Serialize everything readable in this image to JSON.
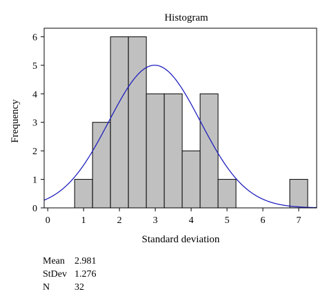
{
  "chart_data": {
    "type": "bar",
    "title": "Histogram",
    "xlabel": "Standard deviation",
    "ylabel": "Frequency",
    "xlim": [
      -0.1,
      7.5
    ],
    "ylim": [
      0,
      6.3
    ],
    "xticks": [
      0,
      1,
      2,
      3,
      4,
      5,
      6,
      7
    ],
    "yticks": [
      0,
      1,
      2,
      3,
      4,
      5,
      6
    ],
    "bin_width": 0.5,
    "bins": [
      {
        "start": 0.75,
        "end": 1.25,
        "value": 1
      },
      {
        "start": 1.25,
        "end": 1.75,
        "value": 3
      },
      {
        "start": 1.75,
        "end": 2.25,
        "value": 6
      },
      {
        "start": 2.25,
        "end": 2.75,
        "value": 6
      },
      {
        "start": 2.75,
        "end": 3.25,
        "value": 4
      },
      {
        "start": 3.25,
        "end": 3.75,
        "value": 4
      },
      {
        "start": 3.75,
        "end": 4.25,
        "value": 2
      },
      {
        "start": 4.25,
        "end": 4.75,
        "value": 4
      },
      {
        "start": 4.75,
        "end": 5.25,
        "value": 1
      },
      {
        "start": 6.75,
        "end": 7.25,
        "value": 1
      }
    ],
    "normal_curve": {
      "mean": 2.981,
      "stdev": 1.276,
      "n": 32
    },
    "colors": {
      "bar_fill": "#c0c0c0",
      "bar_stroke": "#000000",
      "curve": "#1f1fbf"
    },
    "grid": false
  },
  "stats": [
    {
      "label": "Mean",
      "value": "2.981"
    },
    {
      "label": "StDev",
      "value": "1.276"
    },
    {
      "label": "N",
      "value": "32"
    }
  ]
}
